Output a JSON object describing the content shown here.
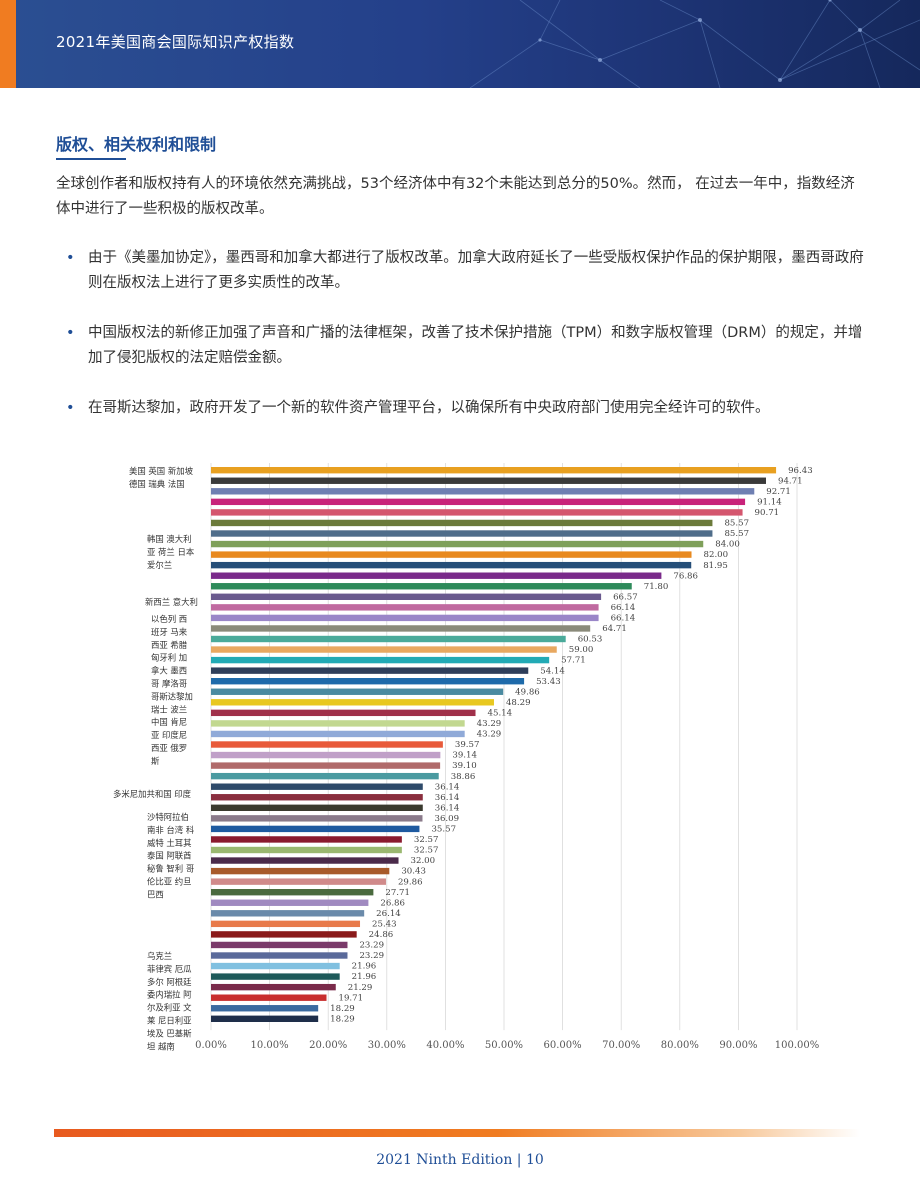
{
  "header": {
    "title": "2021年美国商会国际知识产权指数"
  },
  "section": {
    "title": "版权、相关权利和限制",
    "intro": "全球创作者和版权持有人的环境依然充满挑战，53个经济体中有32个未能达到总分的50%。然而， 在过去一年中，指数经济体中进行了一些积极的版权改革。",
    "bullets": [
      "由于《美墨加协定》，墨西哥和加拿大都进行了版权改革。加拿大政府延长了一些受版权保护作品的保护期限，墨西哥政府则在版权法上进行了更多实质性的改革。",
      "中国版权法的新修正加强了声音和广播的法律框架，改善了技术保护措施（TPM）和数字版权管理（DRM）的规定，并增加了侵犯版权的法定赔偿金额。",
      "在哥斯达黎加，政府开发了一个新的软件资产管理平台，以确保所有中央政府部门使用完全经许可的软件。"
    ]
  },
  "chart_data": {
    "type": "bar",
    "orientation": "horizontal",
    "title": "",
    "xlabel": "",
    "ylabel": "",
    "xlim": [
      0,
      100
    ],
    "x_ticks": [
      "0.00%",
      "10.00%",
      "20.00%",
      "30.00%",
      "40.00%",
      "50.00%",
      "60.00%",
      "70.00%",
      "80.00%",
      "90.00%",
      "100.00%"
    ],
    "grid": true,
    "values": [
      96.43,
      94.71,
      92.71,
      91.14,
      90.71,
      85.57,
      85.57,
      84.0,
      82.0,
      81.95,
      76.86,
      71.8,
      66.57,
      66.14,
      66.14,
      64.71,
      60.53,
      59.0,
      57.71,
      54.14,
      53.43,
      49.86,
      48.29,
      45.14,
      43.29,
      43.29,
      39.57,
      39.14,
      39.1,
      38.86,
      36.14,
      36.14,
      36.14,
      36.09,
      35.57,
      32.57,
      32.57,
      32.0,
      30.43,
      29.86,
      27.71,
      26.86,
      26.14,
      25.43,
      24.86,
      23.29,
      23.29,
      21.96,
      21.96,
      21.29,
      19.71,
      18.29,
      18.29
    ],
    "value_labels": [
      "96.43",
      "94.71",
      "92.71",
      "91.14",
      "90.71",
      "85.57",
      "85.57",
      "84.00",
      "82.00",
      "81.95",
      "76.86",
      "71.80",
      "66.57",
      "66.14",
      "66.14",
      "64.71",
      "60.53",
      "59.00",
      "57.71",
      "54.14",
      "53.43",
      "49.86",
      "48.29",
      "45.14",
      "43.29",
      "43.29",
      "39.57",
      "39.14",
      "39.10",
      "38.86",
      "36.14",
      "36.14",
      "36.14",
      "36.09",
      "35.57",
      "32.57",
      "32.57",
      "32.00",
      "30.43",
      "29.86",
      "27.71",
      "26.86",
      "26.14",
      "25.43",
      "24.86",
      "23.29",
      "23.29",
      "21.96",
      "21.96",
      "21.29",
      "19.71",
      "18.29",
      "18.29"
    ],
    "colors": [
      "#e8a020",
      "#3a3a3a",
      "#6f7fb2",
      "#c8237a",
      "#d4566e",
      "#6b7a3a",
      "#4f6d8a",
      "#7fa05a",
      "#e8891f",
      "#254e78",
      "#7a2a8a",
      "#2e8a5a",
      "#6a5a8e",
      "#c06aa0",
      "#9a86c8",
      "#8a8a7a",
      "#4aaa9a",
      "#e8a860",
      "#22aab5",
      "#2e3e5a",
      "#1e6aaa",
      "#4a8aa0",
      "#e8c820",
      "#a0304a",
      "#c2d890",
      "#90aad8",
      "#e85a3a",
      "#c0a0c8",
      "#b06a6a",
      "#4a9aa0",
      "#2e4a6a",
      "#8a2e3e",
      "#3a3a2e",
      "#8a7a8a",
      "#1e5aa0",
      "#8a1a2e",
      "#9ab870",
      "#4a2a4a",
      "#a85a2a",
      "#d08a8a",
      "#4a6a3e",
      "#a08ac0",
      "#6a8aaa",
      "#e87a4a",
      "#8a1a1a",
      "#7a3a6a",
      "#5a6a9a",
      "#80c0e0",
      "#1e5a5a",
      "#7a2a4a",
      "#c82e2e",
      "#3a6aa0",
      "#1e2e4a"
    ],
    "category_label_groups": [
      {
        "lines": [
          "美国 英国 新加坡",
          "德国 瑞典 法国"
        ]
      },
      {
        "lines": [
          "韩国 澳大利",
          "亚 荷兰 日本",
          "爱尔兰"
        ]
      },
      {
        "lines": [
          "新西兰 意大利"
        ]
      },
      {
        "lines": [
          "以色列 西",
          "班牙 马来",
          "西亚 希腊",
          "匈牙利 加",
          "拿大 墨西",
          "哥 摩洛哥",
          "哥斯达黎加",
          "瑞士 波兰",
          "中国 肯尼",
          "亚 印度尼",
          "西亚 俄罗",
          "斯"
        ]
      },
      {
        "lines": [
          "多米尼加共和国 印度"
        ]
      },
      {
        "lines": [
          "沙特阿拉伯",
          "南非 台湾 科",
          "威特 土耳其",
          "泰国 阿联酋",
          "秘鲁 智利 哥",
          "伦比亚 约旦",
          "巴西"
        ]
      },
      {
        "lines": [
          "乌克兰",
          "菲律宾 厄瓜",
          "多尔 阿根廷",
          "委内瑞拉 阿",
          "尔及利亚 文",
          "莱 尼日利亚",
          "埃及 巴基斯",
          "坦 越南"
        ]
      }
    ]
  },
  "footer": {
    "text": "2021 Ninth Edition | 10"
  }
}
